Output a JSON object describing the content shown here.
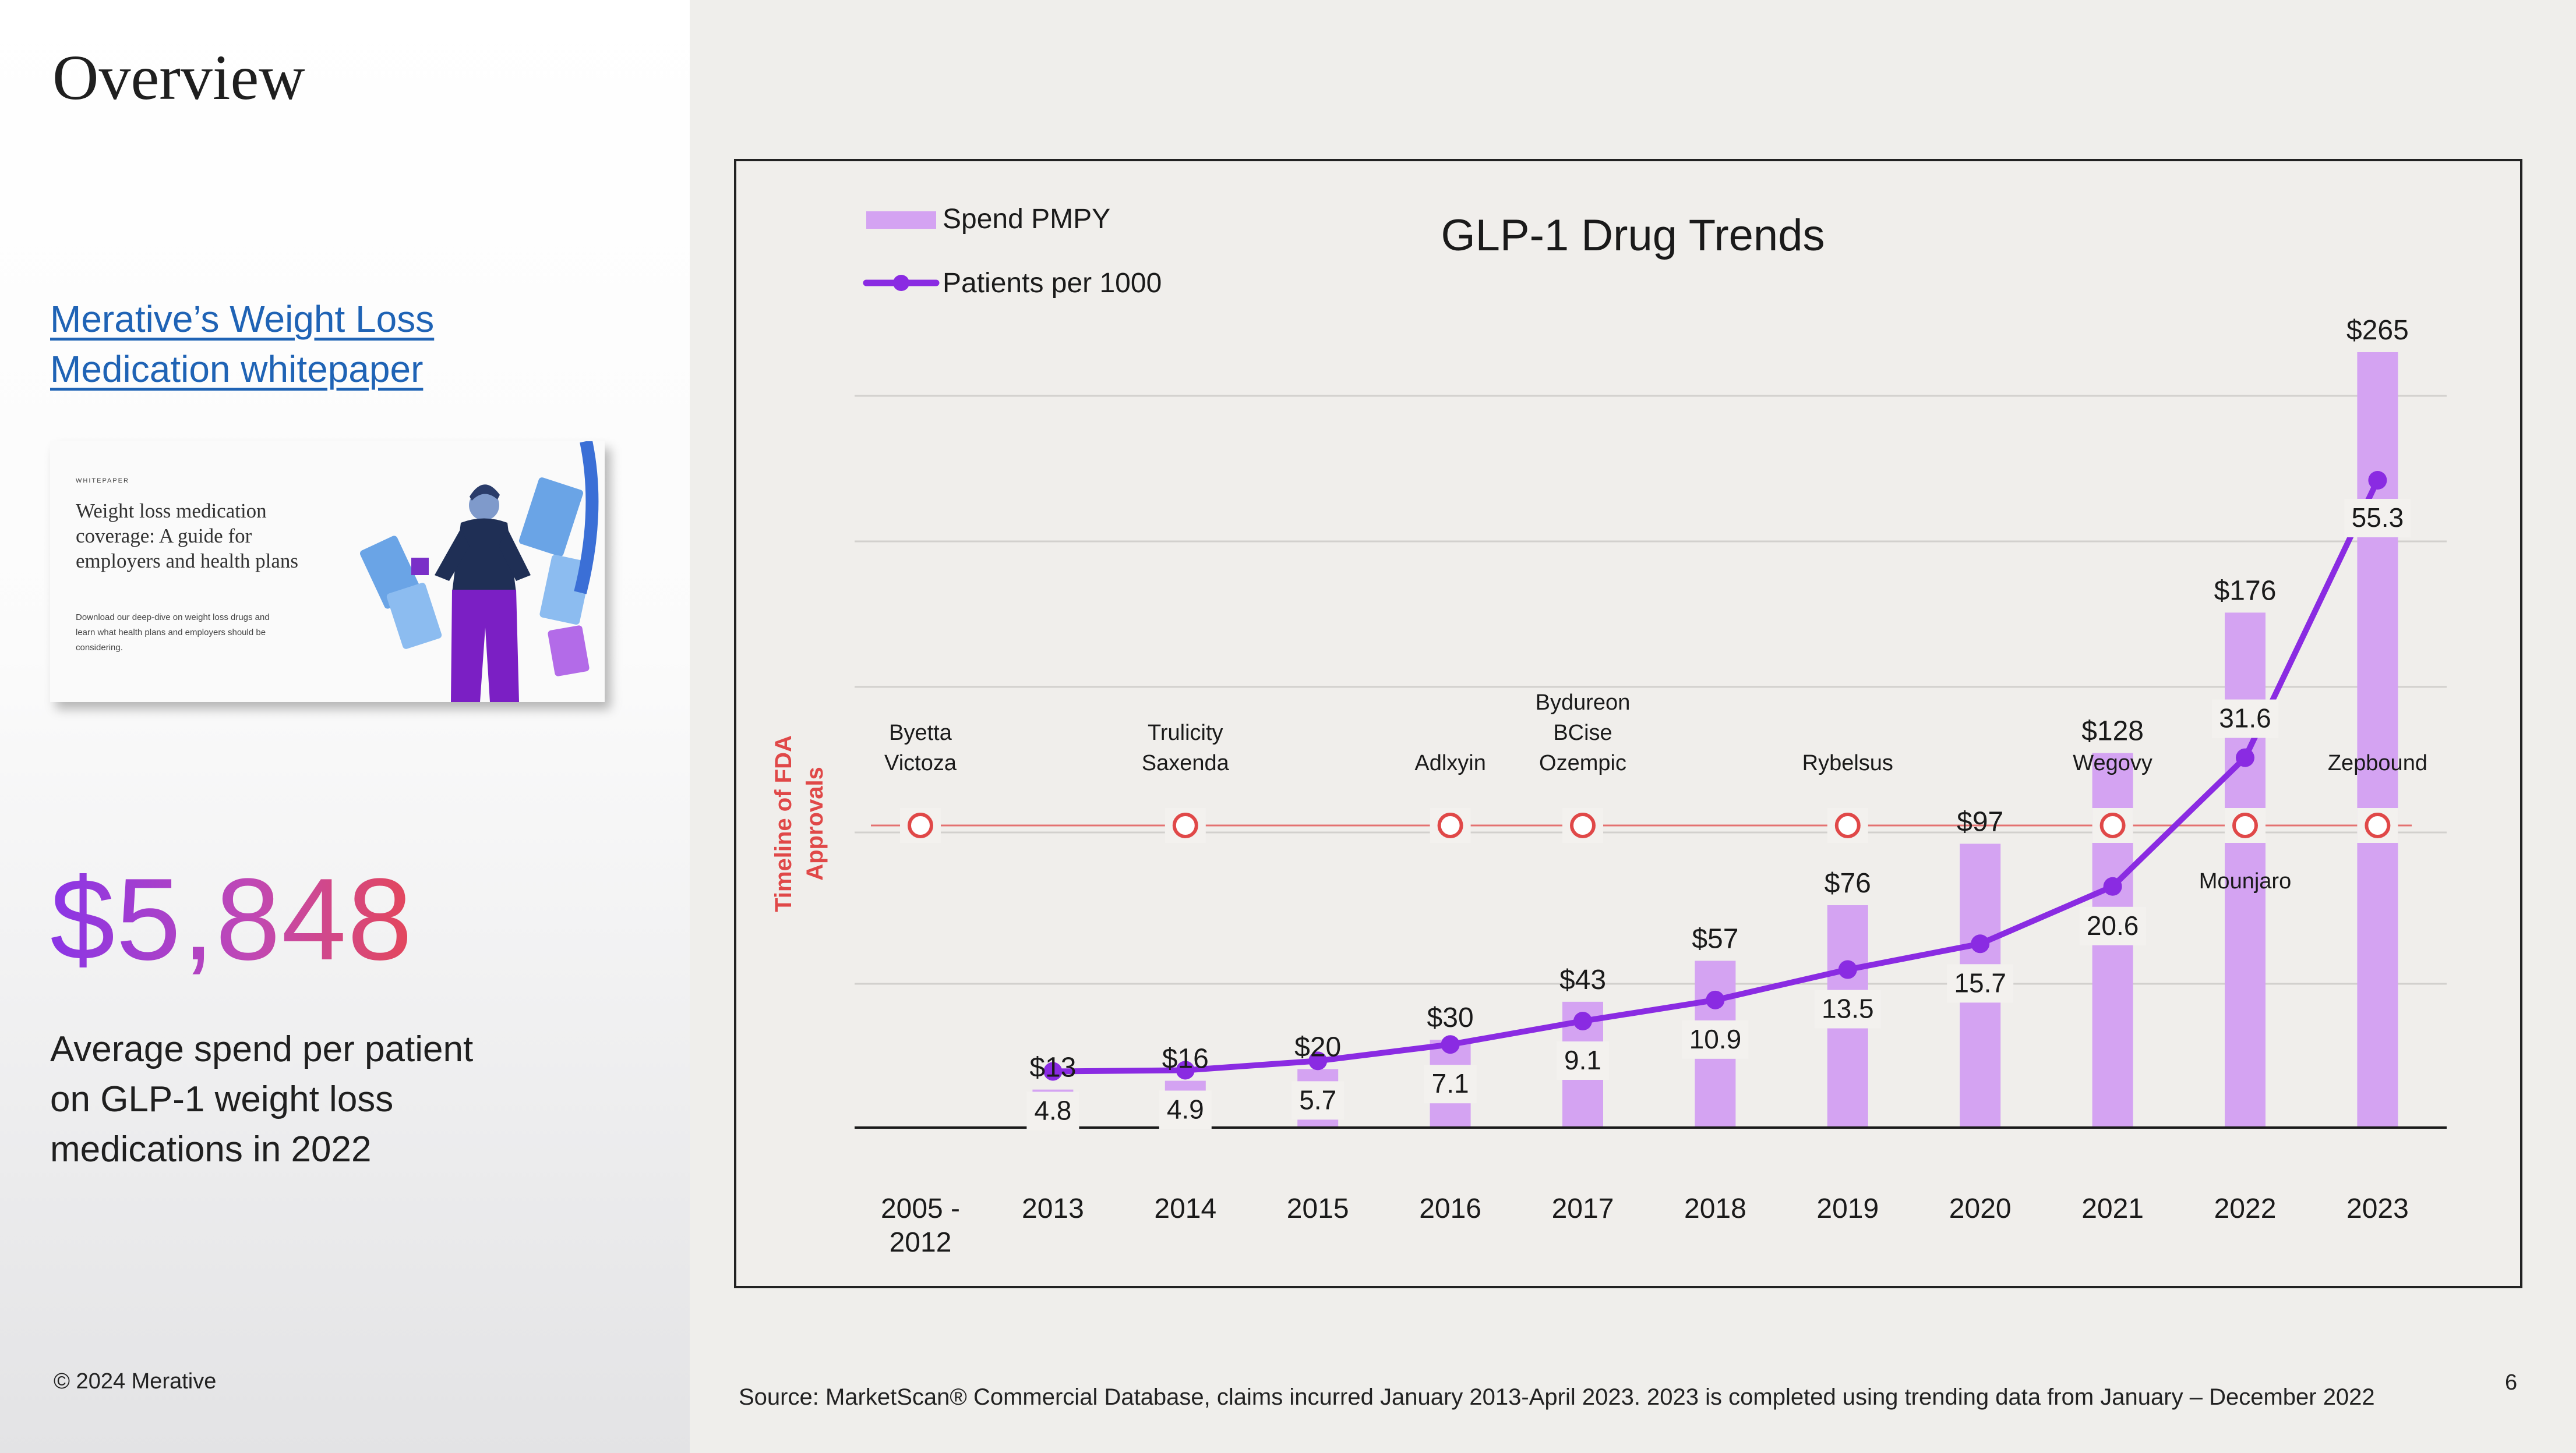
{
  "page": {
    "title": "Overview",
    "link_line1": "Merative’s Weight Loss",
    "link_line2": "Medication whitepaper",
    "whitepaper": {
      "kicker": "WHITEPAPER",
      "title": "Weight loss medication coverage: A guide for employers and health plans",
      "description": "Download our deep-dive on weight loss drugs and learn what health plans and employers should be considering."
    },
    "stat_value": "$5,848",
    "stat_caption": "Average spend per patient on GLP-1 weight loss medications in 2022",
    "copyright": "© 2024 Merative",
    "source": "Source: MarketScan® Commercial Database, claims incurred January 2013-April 2023. 2023 is completed using trending data from January – December 2022",
    "page_number": "6"
  },
  "colors": {
    "bar": "#d4a3f2",
    "line": "#8a2be2",
    "fda": "#e04848",
    "label_box": "#f3f1ee",
    "stat_gradient_start": "#8a35e6",
    "stat_gradient_end": "#e4475a",
    "link": "#1f63b5"
  },
  "chart_data": {
    "type": "bar",
    "title": "GLP-1 Drug Trends",
    "legend_position": "top-left",
    "categories": [
      "2005 - 2012",
      "2013",
      "2014",
      "2015",
      "2016",
      "2017",
      "2018",
      "2019",
      "2020",
      "2021",
      "2022",
      "2023"
    ],
    "series": [
      {
        "name": "Spend PMPY",
        "type": "bar",
        "values": [
          null,
          13,
          16,
          20,
          30,
          43,
          57,
          76,
          97,
          128,
          176,
          265
        ],
        "labels": [
          "",
          "$13",
          "$16",
          "$20",
          "$30",
          "$43",
          "$57",
          "$76",
          "$97",
          "$128",
          "$176",
          "$265"
        ]
      },
      {
        "name": "Patients per 1000",
        "type": "line",
        "values": [
          null,
          4.8,
          4.9,
          5.7,
          7.1,
          9.1,
          10.9,
          13.5,
          15.7,
          20.6,
          31.6,
          55.3
        ],
        "labels": [
          "",
          "4.8",
          "4.9",
          "5.7",
          "7.1",
          "9.1",
          "10.9",
          "13.5",
          "15.7",
          "20.6",
          "31.6",
          "55.3"
        ]
      }
    ],
    "fda_axis_label": [
      "Timeline of FDA",
      "Approvals"
    ],
    "fda_approvals": [
      {
        "category": "2005 - 2012",
        "label_above": [
          "Byetta",
          "Victoza"
        ],
        "label_below": []
      },
      {
        "category": "2014",
        "label_above": [
          "Trulicity",
          "Saxenda"
        ],
        "label_below": []
      },
      {
        "category": "2016",
        "label_above": [
          "Adlxyin"
        ],
        "label_below": []
      },
      {
        "category": "2017",
        "label_above": [
          "Bydureon",
          "BCise",
          "Ozempic"
        ],
        "label_below": []
      },
      {
        "category": "2019",
        "label_above": [
          "Rybelsus"
        ],
        "label_below": []
      },
      {
        "category": "2021",
        "label_above": [
          "Wegovy"
        ],
        "label_below": []
      },
      {
        "category": "2022",
        "label_above": [],
        "label_below": [
          "Mounjaro"
        ]
      },
      {
        "category": "2023",
        "label_above": [
          "Zepbound"
        ],
        "label_below": []
      }
    ],
    "spend_ylim": [
      0,
      280
    ],
    "patients_ylim": [
      0,
      62
    ],
    "grid": true
  }
}
